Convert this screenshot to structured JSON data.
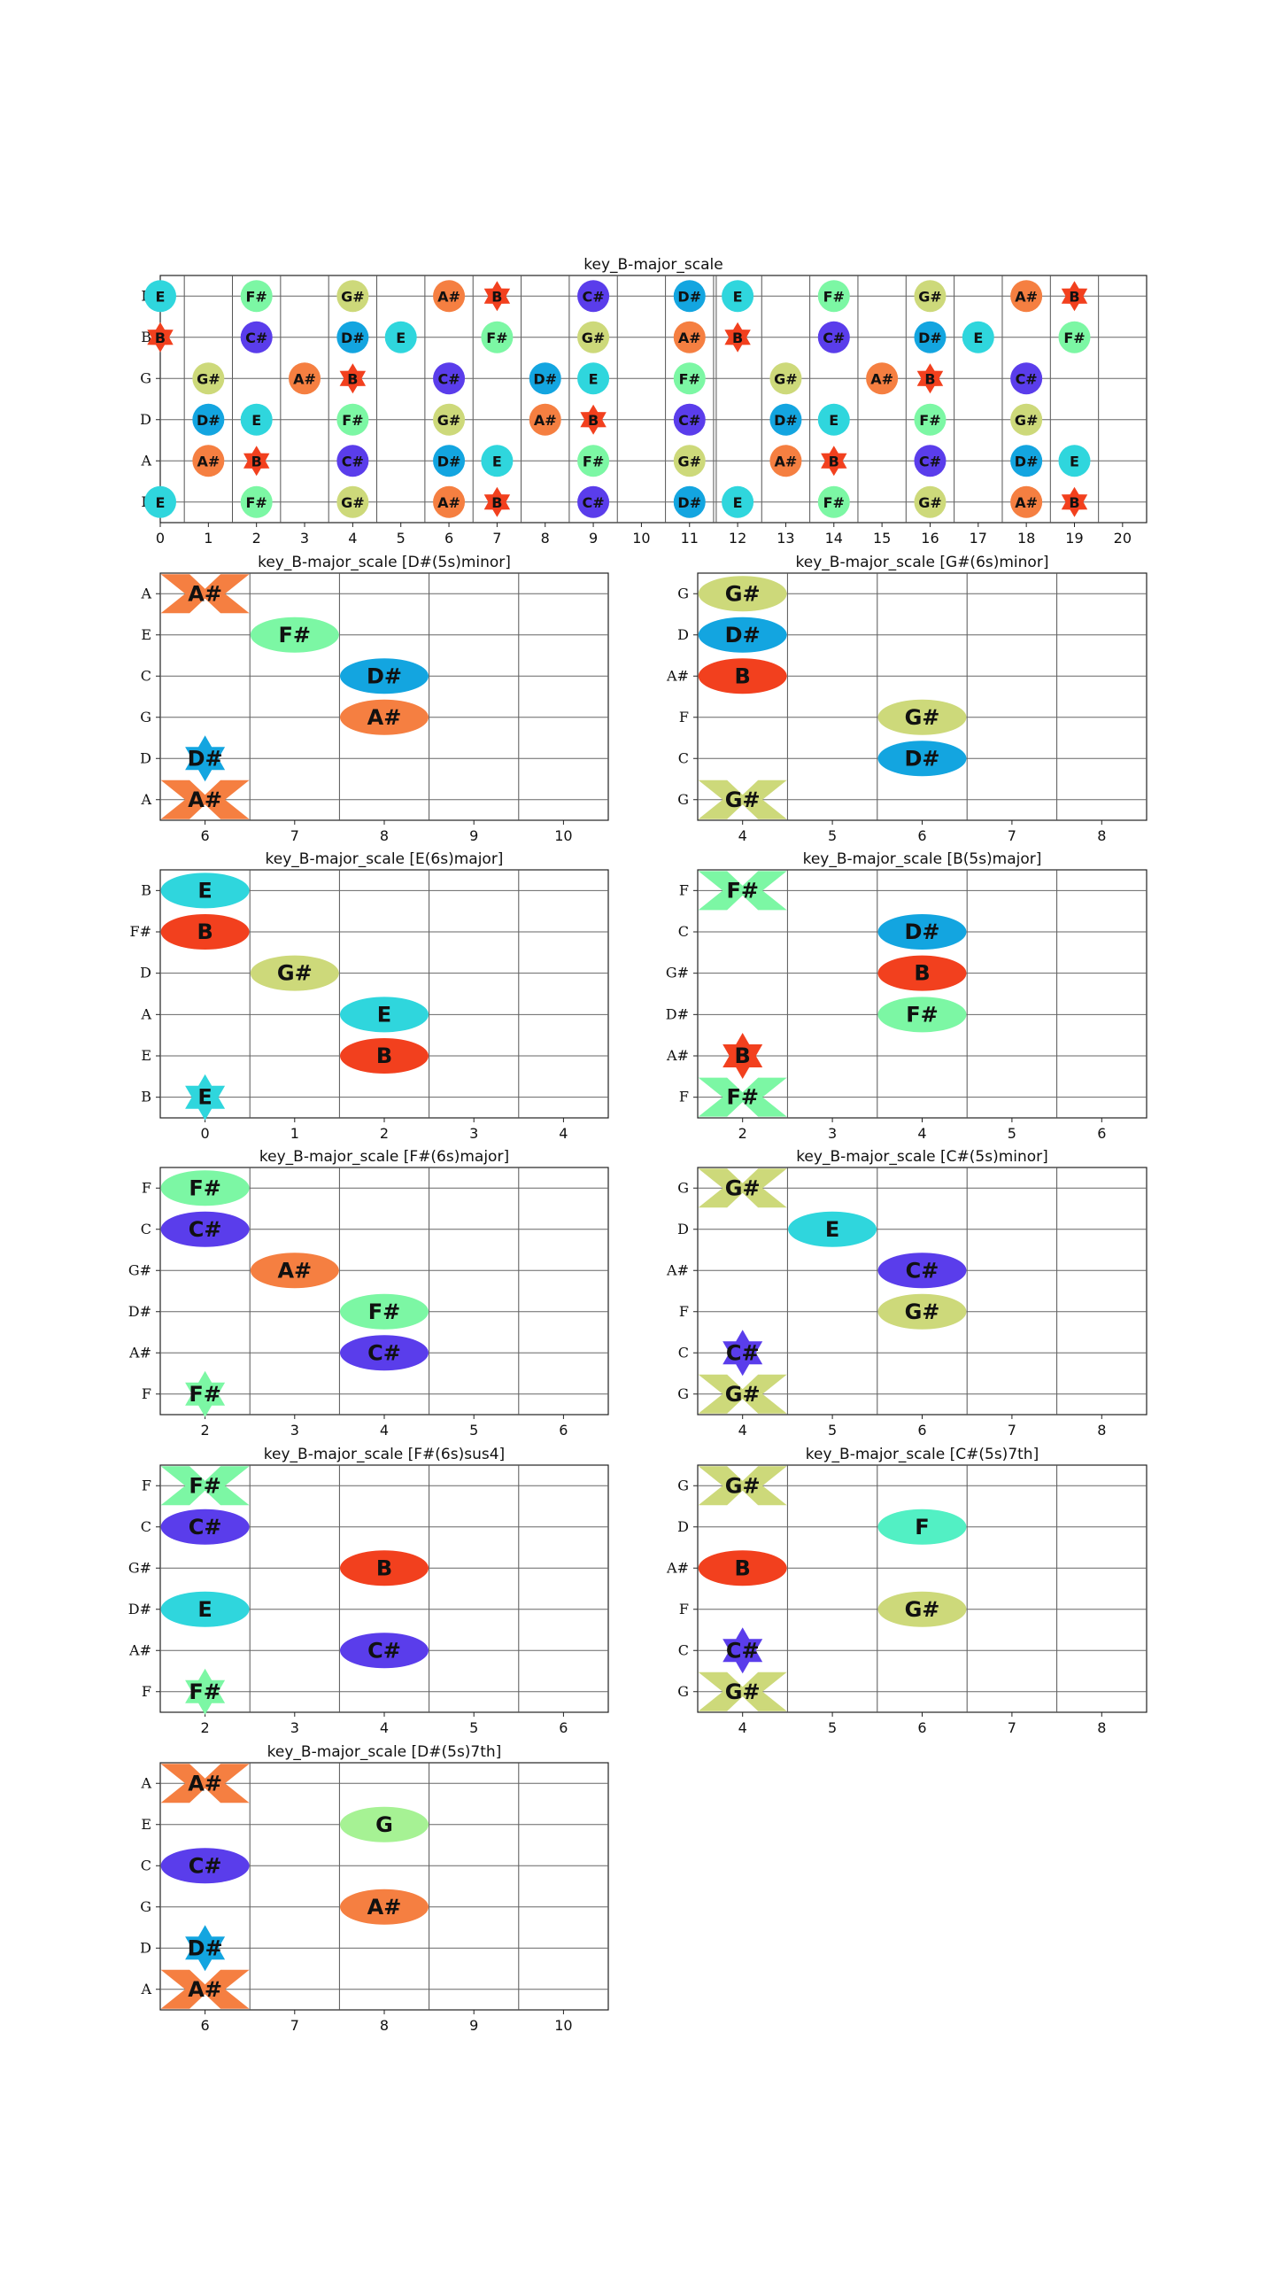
{
  "palette": {
    "A#": "#f57f41",
    "B": "#f2401e",
    "C#": "#5a3deb",
    "D#": "#13a5e0",
    "E": "#2fd6dd",
    "F#": "#7cf7a4",
    "G#": "#cdd97a",
    "F": "#52f0c4",
    "G": "#a6f294"
  },
  "chart_data": [
    {
      "type": "fretboard",
      "title": "key_B-major_scale",
      "strings": [
        "E",
        "A",
        "D",
        "G",
        "B",
        "E"
      ],
      "ylabels": [
        "E",
        "A",
        "D",
        "G",
        "B",
        "E"
      ],
      "xlim": [
        0,
        20.5
      ],
      "xticks": [
        0,
        1,
        2,
        3,
        4,
        5,
        6,
        7,
        8,
        9,
        10,
        11,
        12,
        13,
        14,
        15,
        16,
        17,
        18,
        19,
        20
      ],
      "markers": [
        {
          "s": 0,
          "f": 0,
          "n": "E",
          "shape": "ellipse"
        },
        {
          "s": 0,
          "f": 2,
          "n": "F#",
          "shape": "ellipse"
        },
        {
          "s": 0,
          "f": 4,
          "n": "G#",
          "shape": "ellipse"
        },
        {
          "s": 0,
          "f": 6,
          "n": "A#",
          "shape": "ellipse"
        },
        {
          "s": 0,
          "f": 7,
          "n": "B",
          "shape": "star"
        },
        {
          "s": 0,
          "f": 9,
          "n": "C#",
          "shape": "ellipse"
        },
        {
          "s": 0,
          "f": 11,
          "n": "D#",
          "shape": "ellipse"
        },
        {
          "s": 0,
          "f": 12,
          "n": "E",
          "shape": "ellipse"
        },
        {
          "s": 0,
          "f": 14,
          "n": "F#",
          "shape": "ellipse"
        },
        {
          "s": 0,
          "f": 16,
          "n": "G#",
          "shape": "ellipse"
        },
        {
          "s": 0,
          "f": 18,
          "n": "A#",
          "shape": "ellipse"
        },
        {
          "s": 0,
          "f": 19,
          "n": "B",
          "shape": "star"
        },
        {
          "s": 1,
          "f": 1,
          "n": "A#",
          "shape": "ellipse"
        },
        {
          "s": 1,
          "f": 2,
          "n": "B",
          "shape": "star"
        },
        {
          "s": 1,
          "f": 4,
          "n": "C#",
          "shape": "ellipse"
        },
        {
          "s": 1,
          "f": 6,
          "n": "D#",
          "shape": "ellipse"
        },
        {
          "s": 1,
          "f": 7,
          "n": "E",
          "shape": "ellipse"
        },
        {
          "s": 1,
          "f": 9,
          "n": "F#",
          "shape": "ellipse"
        },
        {
          "s": 1,
          "f": 11,
          "n": "G#",
          "shape": "ellipse"
        },
        {
          "s": 1,
          "f": 13,
          "n": "A#",
          "shape": "ellipse"
        },
        {
          "s": 1,
          "f": 14,
          "n": "B",
          "shape": "star"
        },
        {
          "s": 1,
          "f": 16,
          "n": "C#",
          "shape": "ellipse"
        },
        {
          "s": 1,
          "f": 18,
          "n": "D#",
          "shape": "ellipse"
        },
        {
          "s": 1,
          "f": 19,
          "n": "E",
          "shape": "ellipse"
        },
        {
          "s": 2,
          "f": 1,
          "n": "D#",
          "shape": "ellipse"
        },
        {
          "s": 2,
          "f": 2,
          "n": "E",
          "shape": "ellipse"
        },
        {
          "s": 2,
          "f": 4,
          "n": "F#",
          "shape": "ellipse"
        },
        {
          "s": 2,
          "f": 6,
          "n": "G#",
          "shape": "ellipse"
        },
        {
          "s": 2,
          "f": 8,
          "n": "A#",
          "shape": "ellipse"
        },
        {
          "s": 2,
          "f": 9,
          "n": "B",
          "shape": "star"
        },
        {
          "s": 2,
          "f": 11,
          "n": "C#",
          "shape": "ellipse"
        },
        {
          "s": 2,
          "f": 13,
          "n": "D#",
          "shape": "ellipse"
        },
        {
          "s": 2,
          "f": 14,
          "n": "E",
          "shape": "ellipse"
        },
        {
          "s": 2,
          "f": 16,
          "n": "F#",
          "shape": "ellipse"
        },
        {
          "s": 2,
          "f": 18,
          "n": "G#",
          "shape": "ellipse"
        },
        {
          "s": 3,
          "f": 1,
          "n": "G#",
          "shape": "ellipse"
        },
        {
          "s": 3,
          "f": 3,
          "n": "A#",
          "shape": "ellipse"
        },
        {
          "s": 3,
          "f": 4,
          "n": "B",
          "shape": "star"
        },
        {
          "s": 3,
          "f": 6,
          "n": "C#",
          "shape": "ellipse"
        },
        {
          "s": 3,
          "f": 8,
          "n": "D#",
          "shape": "ellipse"
        },
        {
          "s": 3,
          "f": 9,
          "n": "E",
          "shape": "ellipse"
        },
        {
          "s": 3,
          "f": 11,
          "n": "F#",
          "shape": "ellipse"
        },
        {
          "s": 3,
          "f": 13,
          "n": "G#",
          "shape": "ellipse"
        },
        {
          "s": 3,
          "f": 15,
          "n": "A#",
          "shape": "ellipse"
        },
        {
          "s": 3,
          "f": 16,
          "n": "B",
          "shape": "star"
        },
        {
          "s": 3,
          "f": 18,
          "n": "C#",
          "shape": "ellipse"
        },
        {
          "s": 4,
          "f": 0,
          "n": "B",
          "shape": "star"
        },
        {
          "s": 4,
          "f": 2,
          "n": "C#",
          "shape": "ellipse"
        },
        {
          "s": 4,
          "f": 4,
          "n": "D#",
          "shape": "ellipse"
        },
        {
          "s": 4,
          "f": 5,
          "n": "E",
          "shape": "ellipse"
        },
        {
          "s": 4,
          "f": 7,
          "n": "F#",
          "shape": "ellipse"
        },
        {
          "s": 4,
          "f": 9,
          "n": "G#",
          "shape": "ellipse"
        },
        {
          "s": 4,
          "f": 11,
          "n": "A#",
          "shape": "ellipse"
        },
        {
          "s": 4,
          "f": 12,
          "n": "B",
          "shape": "star"
        },
        {
          "s": 4,
          "f": 14,
          "n": "C#",
          "shape": "ellipse"
        },
        {
          "s": 4,
          "f": 16,
          "n": "D#",
          "shape": "ellipse"
        },
        {
          "s": 4,
          "f": 17,
          "n": "E",
          "shape": "ellipse"
        },
        {
          "s": 4,
          "f": 19,
          "n": "F#",
          "shape": "ellipse"
        },
        {
          "s": 5,
          "f": 0,
          "n": "E",
          "shape": "ellipse"
        },
        {
          "s": 5,
          "f": 2,
          "n": "F#",
          "shape": "ellipse"
        },
        {
          "s": 5,
          "f": 4,
          "n": "G#",
          "shape": "ellipse"
        },
        {
          "s": 5,
          "f": 6,
          "n": "A#",
          "shape": "ellipse"
        },
        {
          "s": 5,
          "f": 7,
          "n": "B",
          "shape": "star"
        },
        {
          "s": 5,
          "f": 9,
          "n": "C#",
          "shape": "ellipse"
        },
        {
          "s": 5,
          "f": 11,
          "n": "D#",
          "shape": "ellipse"
        },
        {
          "s": 5,
          "f": 12,
          "n": "E",
          "shape": "ellipse"
        },
        {
          "s": 5,
          "f": 14,
          "n": "F#",
          "shape": "ellipse"
        },
        {
          "s": 5,
          "f": 16,
          "n": "G#",
          "shape": "ellipse"
        },
        {
          "s": 5,
          "f": 18,
          "n": "A#",
          "shape": "ellipse"
        },
        {
          "s": 5,
          "f": 19,
          "n": "B",
          "shape": "star"
        }
      ]
    },
    {
      "type": "chord-diagram",
      "title": "key_B-major_scale [D#(5s)minor]",
      "ylabels": [
        "A",
        "D",
        "G",
        "C",
        "E",
        "A"
      ],
      "xticks": [
        6,
        7,
        8,
        9,
        10
      ],
      "markers": [
        {
          "s": 0,
          "f": 6,
          "n": "A#",
          "shape": "x"
        },
        {
          "s": 1,
          "f": 6,
          "n": "D#",
          "shape": "star"
        },
        {
          "s": 2,
          "f": 8,
          "n": "A#",
          "shape": "ellipse"
        },
        {
          "s": 3,
          "f": 8,
          "n": "D#",
          "shape": "ellipse"
        },
        {
          "s": 4,
          "f": 7,
          "n": "F#",
          "shape": "ellipse"
        },
        {
          "s": 5,
          "f": 6,
          "n": "A#",
          "shape": "x"
        }
      ]
    },
    {
      "type": "chord-diagram",
      "title": "key_B-major_scale [G#(6s)minor]",
      "ylabels": [
        "G",
        "C",
        "F",
        "A#",
        "D",
        "G"
      ],
      "xticks": [
        4,
        5,
        6,
        7,
        8
      ],
      "markers": [
        {
          "s": 0,
          "f": 4,
          "n": "G#",
          "shape": "x"
        },
        {
          "s": 1,
          "f": 6,
          "n": "D#",
          "shape": "ellipse"
        },
        {
          "s": 2,
          "f": 6,
          "n": "G#",
          "shape": "ellipse"
        },
        {
          "s": 3,
          "f": 4,
          "n": "B",
          "shape": "ellipse"
        },
        {
          "s": 4,
          "f": 4,
          "n": "D#",
          "shape": "ellipse"
        },
        {
          "s": 5,
          "f": 4,
          "n": "G#",
          "shape": "ellipse"
        }
      ]
    },
    {
      "type": "chord-diagram",
      "title": "key_B-major_scale [E(6s)major]",
      "ylabels": [
        "B",
        "E",
        "A",
        "D",
        "F#",
        "B"
      ],
      "xticks": [
        0,
        1,
        2,
        3,
        4
      ],
      "markers": [
        {
          "s": 0,
          "f": 0,
          "n": "E",
          "shape": "star"
        },
        {
          "s": 1,
          "f": 2,
          "n": "B",
          "shape": "ellipse"
        },
        {
          "s": 2,
          "f": 2,
          "n": "E",
          "shape": "ellipse"
        },
        {
          "s": 3,
          "f": 1,
          "n": "G#",
          "shape": "ellipse"
        },
        {
          "s": 4,
          "f": 0,
          "n": "B",
          "shape": "ellipse"
        },
        {
          "s": 5,
          "f": 0,
          "n": "E",
          "shape": "ellipse"
        }
      ]
    },
    {
      "type": "chord-diagram",
      "title": "key_B-major_scale [B(5s)major]",
      "ylabels": [
        "F",
        "A#",
        "D#",
        "G#",
        "C",
        "F"
      ],
      "xticks": [
        2,
        3,
        4,
        5,
        6
      ],
      "markers": [
        {
          "s": 0,
          "f": 2,
          "n": "F#",
          "shape": "x"
        },
        {
          "s": 1,
          "f": 2,
          "n": "B",
          "shape": "star"
        },
        {
          "s": 2,
          "f": 4,
          "n": "F#",
          "shape": "ellipse"
        },
        {
          "s": 3,
          "f": 4,
          "n": "B",
          "shape": "ellipse"
        },
        {
          "s": 4,
          "f": 4,
          "n": "D#",
          "shape": "ellipse"
        },
        {
          "s": 5,
          "f": 2,
          "n": "F#",
          "shape": "x"
        }
      ]
    },
    {
      "type": "chord-diagram",
      "title": "key_B-major_scale [F#(6s)major]",
      "ylabels": [
        "F",
        "A#",
        "D#",
        "G#",
        "C",
        "F"
      ],
      "xticks": [
        2,
        3,
        4,
        5,
        6
      ],
      "markers": [
        {
          "s": 0,
          "f": 2,
          "n": "F#",
          "shape": "star"
        },
        {
          "s": 1,
          "f": 4,
          "n": "C#",
          "shape": "ellipse"
        },
        {
          "s": 2,
          "f": 4,
          "n": "F#",
          "shape": "ellipse"
        },
        {
          "s": 3,
          "f": 3,
          "n": "A#",
          "shape": "ellipse"
        },
        {
          "s": 4,
          "f": 2,
          "n": "C#",
          "shape": "ellipse"
        },
        {
          "s": 5,
          "f": 2,
          "n": "F#",
          "shape": "ellipse"
        }
      ]
    },
    {
      "type": "chord-diagram",
      "title": "key_B-major_scale [C#(5s)minor]",
      "ylabels": [
        "G",
        "C",
        "F",
        "A#",
        "D",
        "G"
      ],
      "xticks": [
        4,
        5,
        6,
        7,
        8
      ],
      "markers": [
        {
          "s": 0,
          "f": 4,
          "n": "G#",
          "shape": "x"
        },
        {
          "s": 1,
          "f": 4,
          "n": "C#",
          "shape": "star"
        },
        {
          "s": 2,
          "f": 6,
          "n": "G#",
          "shape": "ellipse"
        },
        {
          "s": 3,
          "f": 6,
          "n": "C#",
          "shape": "ellipse"
        },
        {
          "s": 4,
          "f": 5,
          "n": "E",
          "shape": "ellipse"
        },
        {
          "s": 5,
          "f": 4,
          "n": "G#",
          "shape": "x"
        }
      ]
    },
    {
      "type": "chord-diagram",
      "title": "key_B-major_scale [F#(6s)sus4]",
      "ylabels": [
        "F",
        "A#",
        "D#",
        "G#",
        "C",
        "F"
      ],
      "xticks": [
        2,
        3,
        4,
        5,
        6
      ],
      "markers": [
        {
          "s": 0,
          "f": 2,
          "n": "F#",
          "shape": "star"
        },
        {
          "s": 1,
          "f": 4,
          "n": "C#",
          "shape": "ellipse"
        },
        {
          "s": 2,
          "f": 2,
          "n": "E",
          "shape": "ellipse"
        },
        {
          "s": 3,
          "f": 4,
          "n": "B",
          "shape": "ellipse"
        },
        {
          "s": 4,
          "f": 2,
          "n": "C#",
          "shape": "ellipse"
        },
        {
          "s": 5,
          "f": 2,
          "n": "F#",
          "shape": "x"
        }
      ]
    },
    {
      "type": "chord-diagram",
      "title": "key_B-major_scale [C#(5s)7th]",
      "ylabels": [
        "G",
        "C",
        "F",
        "A#",
        "D",
        "G"
      ],
      "xticks": [
        4,
        5,
        6,
        7,
        8
      ],
      "markers": [
        {
          "s": 0,
          "f": 4,
          "n": "G#",
          "shape": "x"
        },
        {
          "s": 1,
          "f": 4,
          "n": "C#",
          "shape": "star"
        },
        {
          "s": 2,
          "f": 6,
          "n": "G#",
          "shape": "ellipse"
        },
        {
          "s": 3,
          "f": 4,
          "n": "B",
          "shape": "ellipse"
        },
        {
          "s": 4,
          "f": 6,
          "n": "F",
          "shape": "ellipse"
        },
        {
          "s": 5,
          "f": 4,
          "n": "G#",
          "shape": "x"
        }
      ]
    },
    {
      "type": "chord-diagram",
      "title": "key_B-major_scale [D#(5s)7th]",
      "ylabels": [
        "A",
        "D",
        "G",
        "C",
        "E",
        "A"
      ],
      "xticks": [
        6,
        7,
        8,
        9,
        10
      ],
      "markers": [
        {
          "s": 0,
          "f": 6,
          "n": "A#",
          "shape": "x"
        },
        {
          "s": 1,
          "f": 6,
          "n": "D#",
          "shape": "star"
        },
        {
          "s": 2,
          "f": 8,
          "n": "A#",
          "shape": "ellipse"
        },
        {
          "s": 3,
          "f": 6,
          "n": "C#",
          "shape": "ellipse"
        },
        {
          "s": 4,
          "f": 8,
          "n": "G",
          "shape": "ellipse"
        },
        {
          "s": 5,
          "f": 6,
          "n": "A#",
          "shape": "x"
        }
      ]
    }
  ]
}
